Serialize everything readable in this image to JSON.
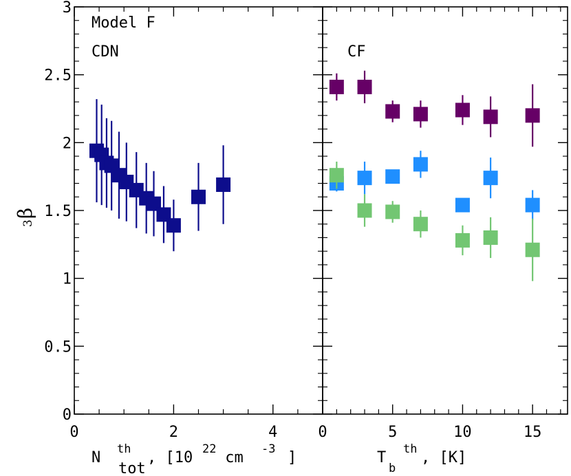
{
  "chart_data": [
    {
      "type": "scatter",
      "panel": "left",
      "annotations": [
        "Model F",
        "CDN"
      ],
      "xlabel": {
        "main": "N",
        "sup": "th",
        "sub": "tot",
        "unit_prefix": ", [10",
        "unit_exp": "22",
        "unit_mid": " cm",
        "unit_exp2": "-3",
        "unit_suffix": "]"
      },
      "ylabel": {
        "main": "β",
        "sub": "3"
      },
      "xlim": [
        0,
        5
      ],
      "ylim": [
        0,
        3
      ],
      "x_ticks": [
        0,
        2,
        4
      ],
      "x_tick_labels": [
        "0",
        "2",
        "4"
      ],
      "y_ticks": [
        0,
        0.5,
        1,
        1.5,
        2,
        2.5,
        3
      ],
      "y_tick_labels": [
        "0",
        "0.5",
        "1",
        "1.5",
        "2",
        "2.5",
        "3"
      ],
      "grid": false,
      "series": [
        {
          "color": "#0d0d8c",
          "points": [
            {
              "x": 0.45,
              "y": 1.94,
              "yerr": 0.38
            },
            {
              "x": 0.55,
              "y": 1.91,
              "yerr": 0.37
            },
            {
              "x": 0.65,
              "y": 1.85,
              "yerr": 0.33
            },
            {
              "x": 0.75,
              "y": 1.83,
              "yerr": 0.33
            },
            {
              "x": 0.9,
              "y": 1.76,
              "yerr": 0.32
            },
            {
              "x": 1.05,
              "y": 1.71,
              "yerr": 0.29
            },
            {
              "x": 1.25,
              "y": 1.65,
              "yerr": 0.28
            },
            {
              "x": 1.45,
              "y": 1.59,
              "yerr": 0.26
            },
            {
              "x": 1.6,
              "y": 1.55,
              "yerr": 0.24
            },
            {
              "x": 1.8,
              "y": 1.47,
              "yerr": 0.21
            },
            {
              "x": 2.0,
              "y": 1.39,
              "yerr": 0.19
            },
            {
              "x": 2.5,
              "y": 1.6,
              "yerr": 0.25
            },
            {
              "x": 3.0,
              "y": 1.69,
              "yerr": 0.29
            }
          ]
        }
      ]
    },
    {
      "type": "scatter",
      "panel": "right",
      "annotations": [
        "CF"
      ],
      "xlabel": {
        "main": "T",
        "sub": "b",
        "sup": "th",
        "unit_suffix": ", [K]"
      },
      "xlim": [
        0,
        17.5
      ],
      "ylim": [
        0,
        3
      ],
      "x_ticks": [
        0,
        5,
        10,
        15
      ],
      "x_tick_labels": [
        "0",
        "5",
        "10",
        "15"
      ],
      "grid": false,
      "series": [
        {
          "color": "#660066",
          "points": [
            {
              "x": 1,
              "y": 2.41,
              "yerr": 0.1
            },
            {
              "x": 3,
              "y": 2.41,
              "yerr": 0.12
            },
            {
              "x": 5,
              "y": 2.23,
              "yerr": 0.08
            },
            {
              "x": 7,
              "y": 2.21,
              "yerr": 0.1
            },
            {
              "x": 10,
              "y": 2.24,
              "yerr": 0.11
            },
            {
              "x": 12,
              "y": 2.19,
              "yerr": 0.15
            },
            {
              "x": 15,
              "y": 2.2,
              "yerr": 0.23
            }
          ]
        },
        {
          "color": "#1f8fff",
          "points": [
            {
              "x": 1,
              "y": 1.7,
              "yerr": 0.06
            },
            {
              "x": 3,
              "y": 1.74,
              "yerr": 0.12
            },
            {
              "x": 5,
              "y": 1.75,
              "yerr": 0.05
            },
            {
              "x": 7,
              "y": 1.84,
              "yerr": 0.1
            },
            {
              "x": 10,
              "y": 1.54,
              "yerr": 0.05
            },
            {
              "x": 12,
              "y": 1.74,
              "yerr": 0.15
            },
            {
              "x": 15,
              "y": 1.54,
              "yerr": 0.11
            }
          ]
        },
        {
          "color": "#72c672",
          "points": [
            {
              "x": 1,
              "y": 1.76,
              "yerr": 0.1
            },
            {
              "x": 3,
              "y": 1.5,
              "yerr": 0.12
            },
            {
              "x": 5,
              "y": 1.49,
              "yerr": 0.08
            },
            {
              "x": 7,
              "y": 1.4,
              "yerr": 0.1
            },
            {
              "x": 10,
              "y": 1.28,
              "yerr": 0.11
            },
            {
              "x": 12,
              "y": 1.3,
              "yerr": 0.15
            },
            {
              "x": 15,
              "y": 1.21,
              "yerr": 0.23
            }
          ]
        }
      ]
    }
  ]
}
